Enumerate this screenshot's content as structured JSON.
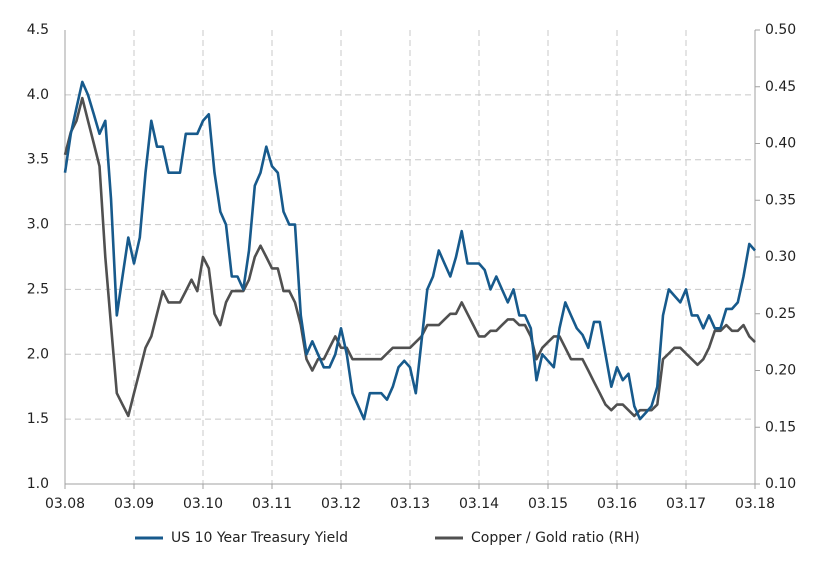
{
  "chart_data": {
    "type": "line",
    "categories": [
      "03.08",
      null,
      null,
      null,
      null,
      null,
      null,
      null,
      null,
      null,
      null,
      null,
      "03.09",
      null,
      null,
      null,
      null,
      null,
      null,
      null,
      null,
      null,
      null,
      null,
      "03.10",
      null,
      null,
      null,
      null,
      null,
      null,
      null,
      null,
      null,
      null,
      null,
      "03.11",
      null,
      null,
      null,
      null,
      null,
      null,
      null,
      null,
      null,
      null,
      null,
      "03.12",
      null,
      null,
      null,
      null,
      null,
      null,
      null,
      null,
      null,
      null,
      null,
      "03.13",
      null,
      null,
      null,
      null,
      null,
      null,
      null,
      null,
      null,
      null,
      null,
      "03.14",
      null,
      null,
      null,
      null,
      null,
      null,
      null,
      null,
      null,
      null,
      null,
      "03.15",
      null,
      null,
      null,
      null,
      null,
      null,
      null,
      null,
      null,
      null,
      null,
      "03.16",
      null,
      null,
      null,
      null,
      null,
      null,
      null,
      null,
      null,
      null,
      null,
      "03.17",
      null,
      null,
      null,
      null,
      null,
      null,
      null,
      null,
      null,
      null,
      null,
      "03.18"
    ],
    "series": [
      {
        "name": "US 10 Year Treasury Yield",
        "color": "#175a8c",
        "values": [
          3.4,
          3.7,
          3.9,
          4.1,
          4.0,
          3.85,
          3.7,
          3.8,
          3.2,
          2.3,
          2.6,
          2.9,
          2.7,
          2.9,
          3.4,
          3.8,
          3.6,
          3.6,
          3.4,
          3.4,
          3.4,
          3.7,
          3.7,
          3.7,
          3.8,
          3.85,
          3.4,
          3.1,
          3.0,
          2.6,
          2.6,
          2.5,
          2.8,
          3.3,
          3.4,
          3.6,
          3.45,
          3.4,
          3.1,
          3.0,
          3.0,
          2.3,
          2.0,
          2.1,
          2.0,
          1.9,
          1.9,
          2.0,
          2.2,
          2.0,
          1.7,
          1.6,
          1.5,
          1.7,
          1.7,
          1.7,
          1.65,
          1.75,
          1.9,
          1.95,
          1.9,
          1.7,
          2.1,
          2.5,
          2.6,
          2.8,
          2.7,
          2.6,
          2.75,
          2.95,
          2.7,
          2.7,
          2.7,
          2.65,
          2.5,
          2.6,
          2.5,
          2.4,
          2.5,
          2.3,
          2.3,
          2.2,
          1.8,
          2.0,
          1.95,
          1.9,
          2.2,
          2.4,
          2.3,
          2.2,
          2.15,
          2.05,
          2.25,
          2.25,
          2.0,
          1.75,
          1.9,
          1.8,
          1.85,
          1.6,
          1.5,
          1.55,
          1.6,
          1.75,
          2.3,
          2.5,
          2.45,
          2.4,
          2.5,
          2.3,
          2.3,
          2.2,
          2.3,
          2.2,
          2.2,
          2.35,
          2.35,
          2.4,
          2.6,
          2.85,
          2.8
        ]
      },
      {
        "name": "Copper / Gold ratio (RH)",
        "color": "#505050",
        "axis": "y2",
        "values": [
          0.39,
          0.41,
          0.42,
          0.44,
          0.42,
          0.4,
          0.38,
          0.3,
          0.24,
          0.18,
          0.17,
          0.16,
          0.18,
          0.2,
          0.22,
          0.23,
          0.25,
          0.27,
          0.26,
          0.26,
          0.26,
          0.27,
          0.28,
          0.27,
          0.3,
          0.29,
          0.25,
          0.24,
          0.26,
          0.27,
          0.27,
          0.27,
          0.28,
          0.3,
          0.31,
          0.3,
          0.29,
          0.29,
          0.27,
          0.27,
          0.26,
          0.24,
          0.21,
          0.2,
          0.21,
          0.21,
          0.22,
          0.23,
          0.22,
          0.22,
          0.21,
          0.21,
          0.21,
          0.21,
          0.21,
          0.21,
          0.215,
          0.22,
          0.22,
          0.22,
          0.22,
          0.225,
          0.23,
          0.24,
          0.24,
          0.24,
          0.245,
          0.25,
          0.25,
          0.26,
          0.25,
          0.24,
          0.23,
          0.23,
          0.235,
          0.235,
          0.24,
          0.245,
          0.245,
          0.24,
          0.24,
          0.23,
          0.21,
          0.22,
          0.225,
          0.23,
          0.23,
          0.22,
          0.21,
          0.21,
          0.21,
          0.2,
          0.19,
          0.18,
          0.17,
          0.165,
          0.17,
          0.17,
          0.165,
          0.16,
          0.165,
          0.165,
          0.165,
          0.17,
          0.21,
          0.215,
          0.22,
          0.22,
          0.215,
          0.21,
          0.205,
          0.21,
          0.22,
          0.235,
          0.235,
          0.24,
          0.235,
          0.235,
          0.24,
          0.23,
          0.225
        ]
      }
    ],
    "ylim": [
      1.0,
      4.5
    ],
    "yticks": [
      {
        "value": 1.0,
        "label": "1.0"
      },
      1.5,
      {
        "value": 2.0,
        "label": "2.0"
      },
      2.5,
      {
        "value": 3.0,
        "label": "3.0"
      },
      3.5,
      {
        "value": 4.0,
        "label": "4.0"
      },
      4.5
    ],
    "y2lim": [
      0.1,
      0.5
    ],
    "y2ticks": [
      {
        "value": 0.1,
        "label": "0.10"
      },
      0.15,
      {
        "value": 0.2,
        "label": "0.20"
      },
      0.25,
      {
        "value": 0.3,
        "label": "0.30"
      },
      0.35,
      {
        "value": 0.4,
        "label": "0.40"
      },
      0.45,
      {
        "value": 0.5,
        "label": "0.50"
      }
    ],
    "grid": true,
    "legend": "bottom"
  }
}
